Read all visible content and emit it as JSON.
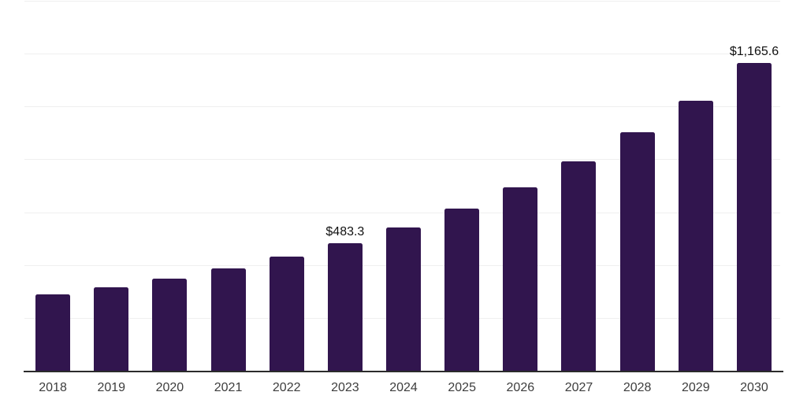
{
  "chart_data": {
    "type": "bar",
    "title": "",
    "xlabel": "",
    "ylabel": "",
    "ylim": [
      0,
      1400
    ],
    "gridline_values": [
      200,
      400,
      600,
      800,
      1000,
      1200,
      1400
    ],
    "grid": "horizontal-only",
    "legend": "none",
    "categories": [
      "2018",
      "2019",
      "2020",
      "2021",
      "2022",
      "2023",
      "2024",
      "2025",
      "2026",
      "2027",
      "2028",
      "2029",
      "2030"
    ],
    "points": [
      {
        "year": "2018",
        "value": 288
      },
      {
        "year": "2019",
        "value": 315
      },
      {
        "year": "2020",
        "value": 348
      },
      {
        "year": "2021",
        "value": 387
      },
      {
        "year": "2022",
        "value": 431
      },
      {
        "year": "2023",
        "value": 483.3,
        "label": "$483.3"
      },
      {
        "year": "2024",
        "value": 543
      },
      {
        "year": "2025",
        "value": 615
      },
      {
        "year": "2026",
        "value": 694
      },
      {
        "year": "2027",
        "value": 791
      },
      {
        "year": "2028",
        "value": 902
      },
      {
        "year": "2029",
        "value": 1022
      },
      {
        "year": "2030",
        "value": 1165.6,
        "label": "$1,165.6"
      }
    ],
    "colors": {
      "bar": "#31154e",
      "axis_line": "#2b2b2b",
      "gridline": "#efefef",
      "tick_label": "#3d3d3d",
      "value_label": "#111111",
      "background": "#ffffff"
    }
  }
}
